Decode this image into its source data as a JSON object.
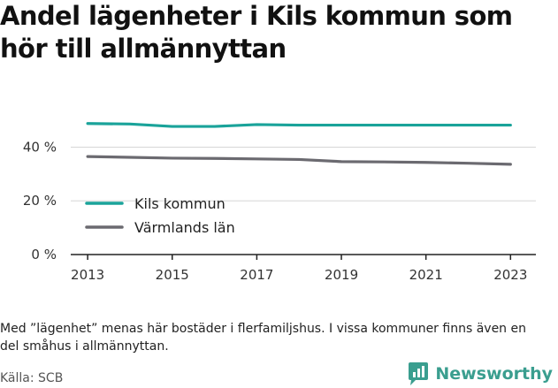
{
  "title": "Andel lägenheter i Kils kommun som hör till allmännyttan",
  "note": "Med ”lägenhet” menas här bostäder i flerfamiljshus. I vissa kommuner finns även en del småhus i allmännyttan.",
  "source": "Källa: SCB",
  "brand": {
    "name": "Newsworthy",
    "icon": "newsworthy-logo-icon",
    "color": "#3a9e8f"
  },
  "chart_data": {
    "type": "line",
    "title": "Andel lägenheter i Kils kommun som hör till allmännyttan",
    "x": [
      2013,
      2014,
      2015,
      2016,
      2017,
      2018,
      2019,
      2020,
      2021,
      2022,
      2023
    ],
    "x_ticks": [
      "2013",
      "2015",
      "2017",
      "2019",
      "2021",
      "2023"
    ],
    "y_ticks": [
      "0 %",
      "20 %",
      "40 %"
    ],
    "y_tick_values": [
      0,
      20,
      40
    ],
    "xlim": [
      2012.6,
      2023.6
    ],
    "ylim": [
      0,
      52
    ],
    "grid": true,
    "legend_position": "bottom-left",
    "series": [
      {
        "name": "Kils kommun",
        "color": "#1aa39a",
        "values": [
          48.8,
          48.6,
          47.7,
          47.7,
          48.4,
          48.2,
          48.2,
          48.2,
          48.2,
          48.2,
          48.2
        ]
      },
      {
        "name": "Värmlands län",
        "color": "#6b6a70",
        "values": [
          36.5,
          36.2,
          35.9,
          35.8,
          35.6,
          35.4,
          34.6,
          34.5,
          34.3,
          34.0,
          33.6
        ]
      }
    ]
  }
}
